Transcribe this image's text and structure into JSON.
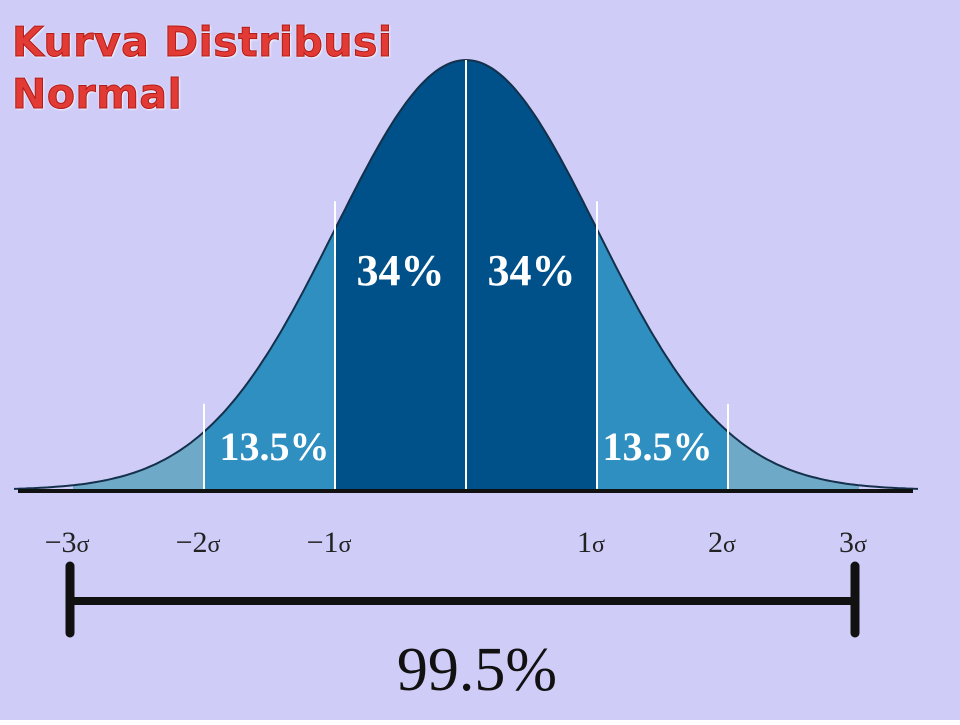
{
  "title": {
    "line1": "Kurva Distribusi",
    "line2": "Normal"
  },
  "colors": {
    "background": "#cfcdf8",
    "inner_band": "#005189",
    "middle_band": "#2e8fc0",
    "outer_band": "#6fa9c8",
    "axis": "#111111",
    "title": "#e23a35"
  },
  "diagram": {
    "distribution": "normal",
    "bands": [
      {
        "from": -3,
        "to": -2,
        "fill": "outer_band"
      },
      {
        "from": -2,
        "to": -1,
        "fill": "middle_band",
        "label": "13.5%"
      },
      {
        "from": -1,
        "to": 0,
        "fill": "inner_band",
        "label": "34%"
      },
      {
        "from": 0,
        "to": 1,
        "fill": "inner_band",
        "label": "34%"
      },
      {
        "from": 1,
        "to": 2,
        "fill": "middle_band",
        "label": "13.5%"
      },
      {
        "from": 2,
        "to": 3,
        "fill": "outer_band"
      }
    ],
    "tick_labels": [
      {
        "sigma": -3,
        "num": "−3",
        "sym": "σ"
      },
      {
        "sigma": -2,
        "num": "−2",
        "sym": "σ"
      },
      {
        "sigma": -1,
        "num": "−1",
        "sym": "σ"
      },
      {
        "sigma": 1,
        "num": "1",
        "sym": "σ"
      },
      {
        "sigma": 2,
        "num": "2",
        "sym": "σ"
      },
      {
        "sigma": 3,
        "num": "3",
        "sym": "σ"
      }
    ],
    "bracket": {
      "from": -3,
      "to": 3,
      "label": "99.5%"
    }
  }
}
